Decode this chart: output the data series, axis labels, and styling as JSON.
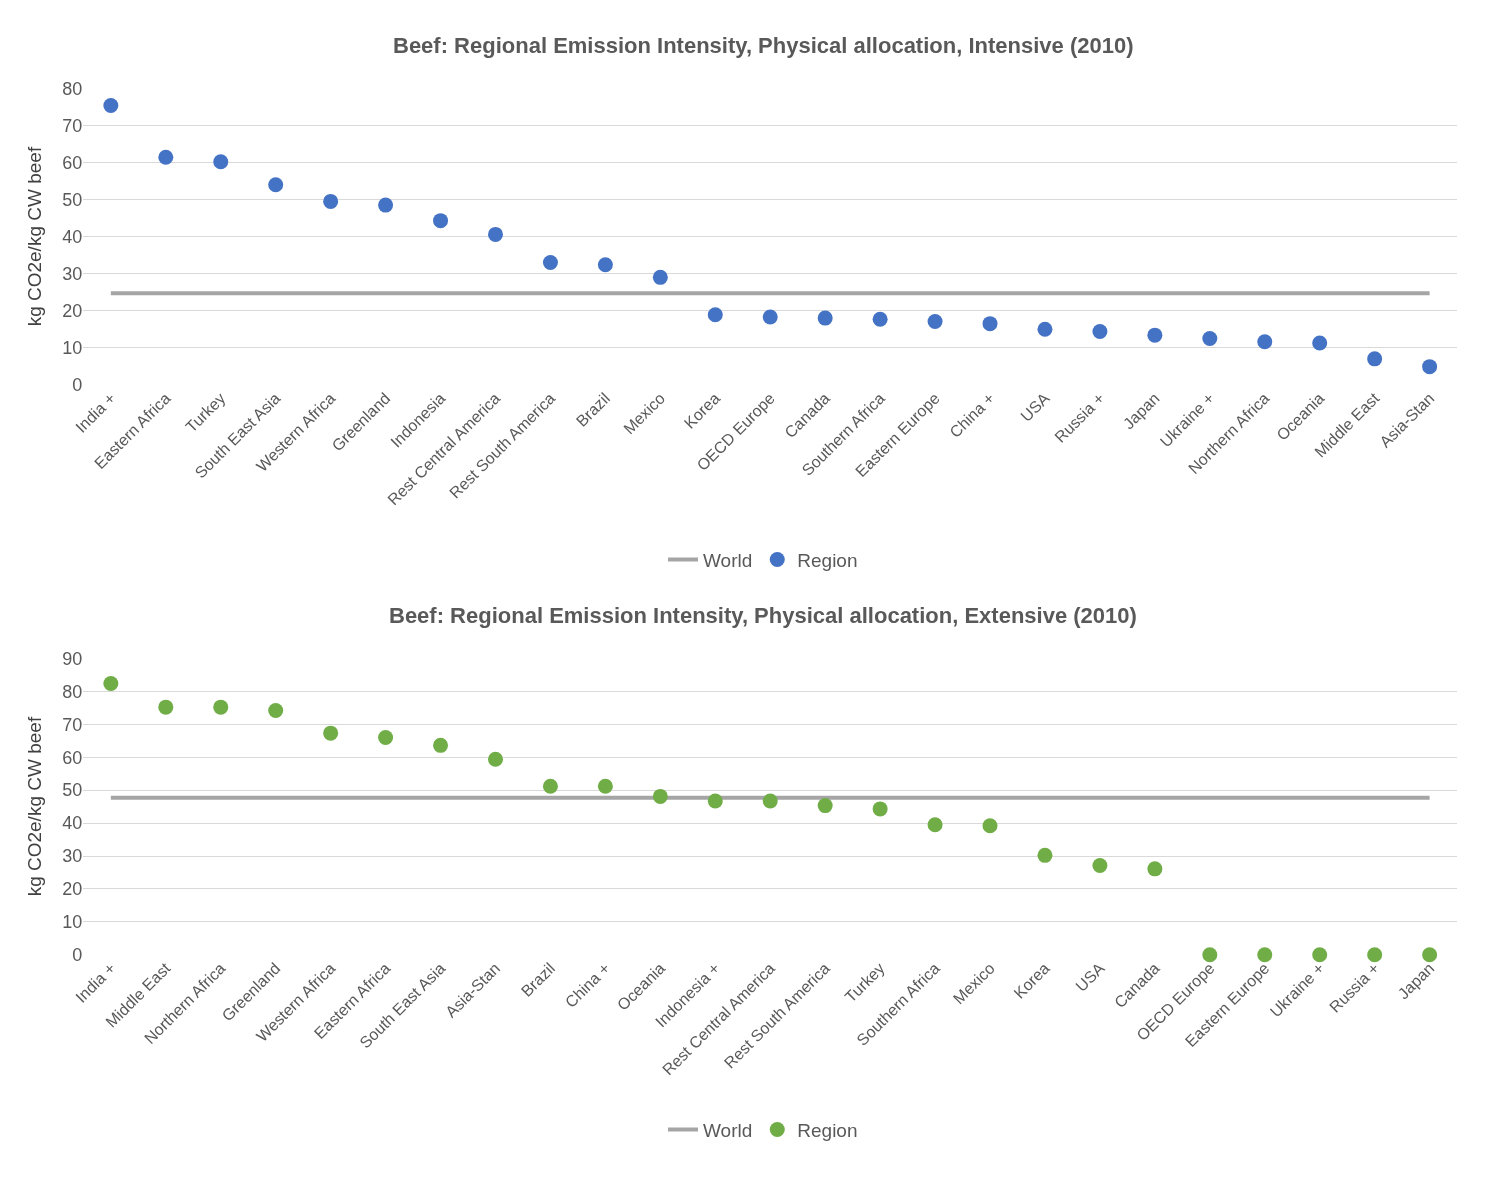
{
  "chart_data": [
    {
      "type": "scatter",
      "title": "Beef: Regional Emission Intensity, Physical allocation, Intensive (2010)",
      "ylabel": "kg CO2e/kg CW beef",
      "categories": [
        "India +",
        "Eastern Africa",
        "Turkey",
        "South East Asia",
        "Western Africa",
        "Greenland",
        "Indonesia",
        "Rest Central America",
        "Rest South America",
        "Brazil",
        "Mexico",
        "Korea",
        "OECD Europe",
        "Canada",
        "Southern Africa",
        "Eastern Europe",
        "China +",
        "USA",
        "Russia +",
        "Japan",
        "Ukraine +",
        "Northern Africa",
        "Oceania",
        "Middle East",
        "Asia-Stan"
      ],
      "series": [
        {
          "name": "World",
          "type": "line",
          "color": "#a5a5a5",
          "marker": "none",
          "values": [
            24.7,
            24.7,
            24.7,
            24.7,
            24.7,
            24.7,
            24.7,
            24.7,
            24.7,
            24.7,
            24.7,
            24.7,
            24.7,
            24.7,
            24.7,
            24.7,
            24.7,
            24.7,
            24.7,
            24.7,
            24.7,
            24.7,
            24.7,
            24.7,
            24.7
          ]
        },
        {
          "name": "Region",
          "color": "#4472c4",
          "marker": "circle",
          "values": [
            75.4,
            61.4,
            60.2,
            54,
            49.5,
            48.5,
            44.3,
            40.6,
            33,
            32.4,
            29,
            18.9,
            18.3,
            18,
            17.7,
            17.1,
            16.5,
            15,
            14.4,
            13.4,
            12.5,
            11.6,
            11.3,
            7,
            4.9
          ]
        }
      ],
      "ylim": [
        0,
        80
      ],
      "yticks": [
        0,
        10,
        20,
        30,
        40,
        50,
        60,
        70,
        80
      ],
      "grid": "y",
      "legend": "bottom"
    },
    {
      "type": "scatter",
      "title": "Beef: Regional Emission Intensity, Physical allocation, Extensive (2010)",
      "ylabel": "kg CO2e/kg CW beef",
      "categories": [
        "India +",
        "Middle East",
        "Northern Africa",
        "Greenland",
        "Western Africa",
        "Eastern Africa",
        "South East Asia",
        "Asia-Stan",
        "Brazil",
        "China +",
        "Oceania",
        "Indonesia +",
        "Rest Central America",
        "Rest South America",
        "Turkey",
        "Southern Africa",
        "Mexico",
        "Korea",
        "USA",
        "Canada",
        "OECD Europe",
        "Eastern Europe",
        "Ukraine +",
        "Russia +",
        "Japan"
      ],
      "series": [
        {
          "name": "World",
          "type": "line",
          "color": "#a5a5a5",
          "marker": "none",
          "values": [
            47.7,
            47.7,
            47.7,
            47.7,
            47.7,
            47.7,
            47.7,
            47.7,
            47.7,
            47.7,
            47.7,
            47.7,
            47.7,
            47.7,
            47.7,
            47.7,
            47.7,
            47.7,
            47.7,
            47.7,
            47.7,
            47.7,
            47.7,
            47.7,
            47.7
          ]
        },
        {
          "name": "Region",
          "color": "#70ad47",
          "marker": "circle",
          "values": [
            82.4,
            75.2,
            75.2,
            74.2,
            67.3,
            66,
            63.6,
            59.4,
            51.2,
            51.2,
            48.1,
            46.7,
            46.7,
            45.3,
            44.3,
            39.5,
            39.2,
            30.2,
            27.1,
            26.1,
            0,
            0,
            0,
            0,
            0
          ]
        }
      ],
      "ylim": [
        0,
        90
      ],
      "yticks": [
        0,
        10,
        20,
        30,
        40,
        50,
        60,
        70,
        80,
        90
      ],
      "grid": "y",
      "legend": "bottom"
    }
  ]
}
